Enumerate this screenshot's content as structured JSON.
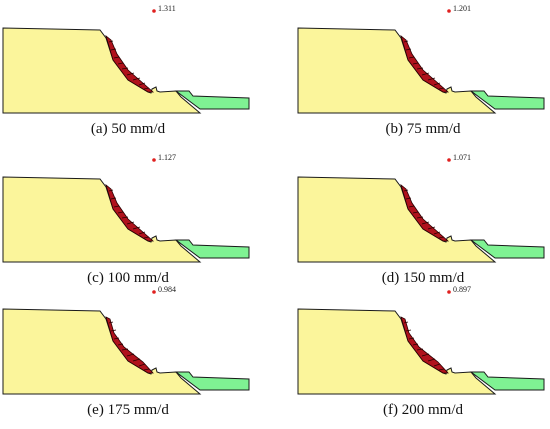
{
  "colors": {
    "slope_soil": "#fbf59b",
    "toe_soil": "#7ff293",
    "slip_mass": "#b0121c",
    "slip_hatch": "#2a0000",
    "critical_center": "#e0201f",
    "outline": "#1a1a1a"
  },
  "panels": [
    {
      "caption": "(a) 50 mm/d",
      "fos": "1.311",
      "slip_variant": "deep"
    },
    {
      "caption": "(b) 75 mm/d",
      "fos": "1.201",
      "slip_variant": "deep"
    },
    {
      "caption": "(c) 100 mm/d",
      "fos": "1.127",
      "slip_variant": "deep"
    },
    {
      "caption": "(d) 150 mm/d",
      "fos": "1.071",
      "slip_variant": "deep"
    },
    {
      "caption": "(e) 175 mm/d",
      "fos": "0.984",
      "slip_variant": "shallow"
    },
    {
      "caption": "(f) 200 mm/d",
      "fos": "0.897",
      "slip_variant": "shallow"
    }
  ]
}
